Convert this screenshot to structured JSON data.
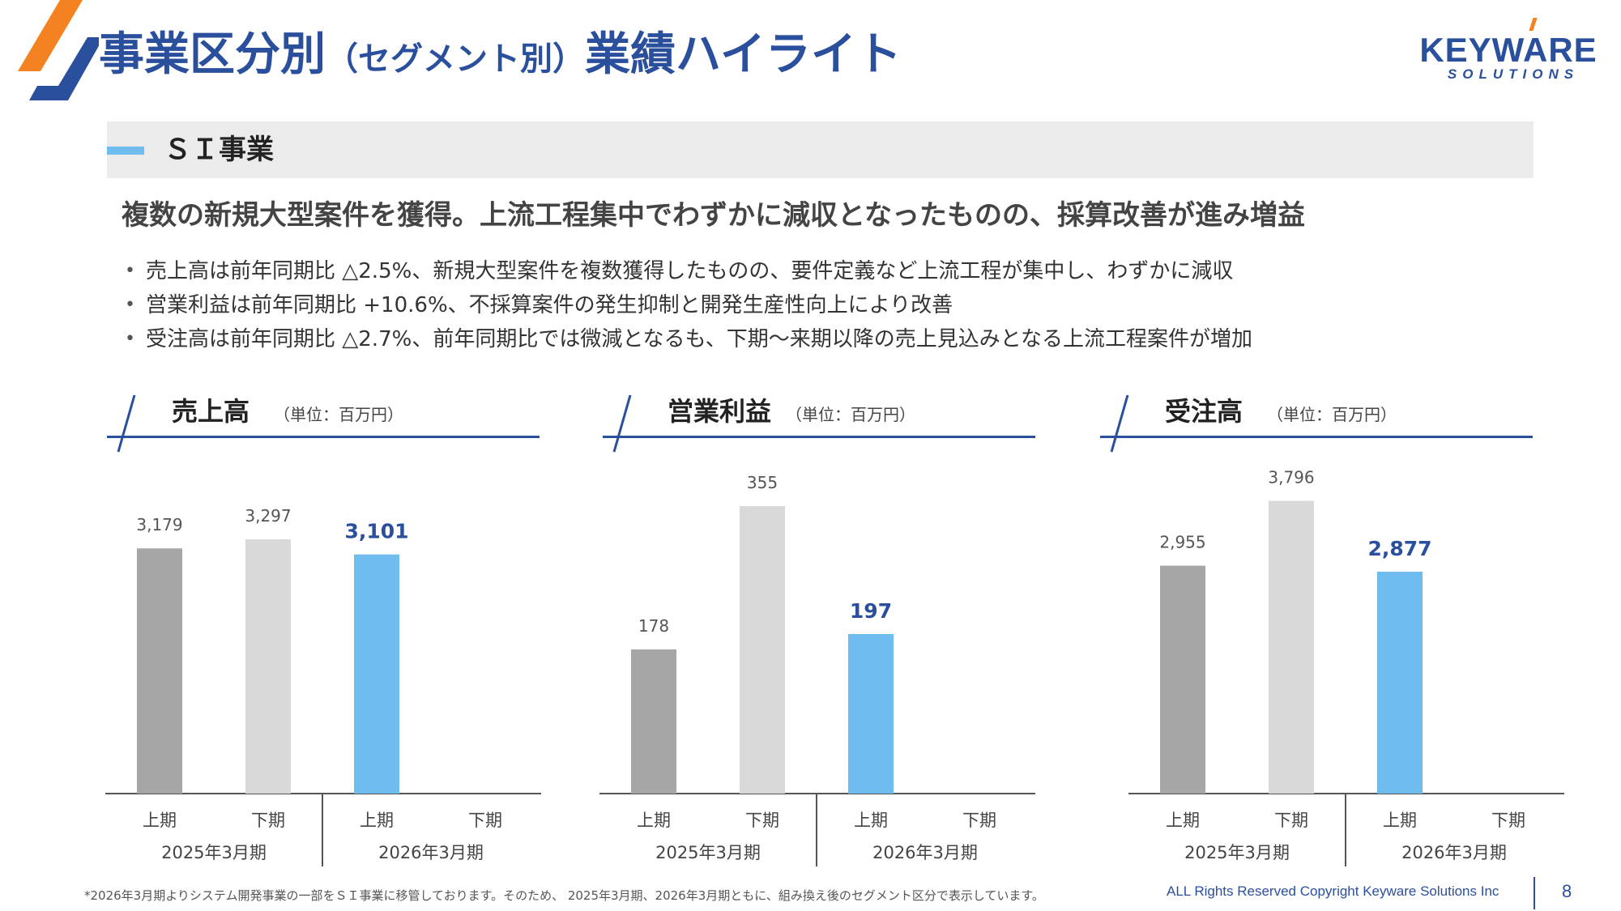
{
  "header": {
    "title_main": "事業区分別",
    "title_sub": "（セグメント別）",
    "title_tail": "業績ハイライト"
  },
  "logo": {
    "name": "KEYWARE",
    "sub": "SOLUTIONS"
  },
  "section": {
    "title": "ＳＩ事業"
  },
  "headline": "複数の新規大型案件を獲得。上流工程集中でわずかに減収となったものの、採算改善が進み増益",
  "bullets": [
    "売上高は前年同期比 △2.5%、新規大型案件を複数獲得したものの、要件定義など上流工程が集中し、わずかに減収",
    "営業利益は前年同期比 +10.6%、不採算案件の発生抑制と開発生産性向上により改善",
    "受注高は前年同期比 △2.7%、前年同期比では微減となるも、下期〜来期以降の売上見込みとなる上流工程案件が増加"
  ],
  "colors": {
    "brand_blue": "#2a4f9c",
    "accent_orange": "#f58220",
    "bar_prev_h1": "#a6a6a6",
    "bar_prev_h2": "#d9d9d9",
    "bar_current": "#6fbcef",
    "label_current": "#2a4f9c"
  },
  "chart_data": [
    {
      "type": "bar",
      "title": "売上高",
      "unit": "（単位：百万円）",
      "categories": [
        "上期",
        "下期",
        "上期",
        "下期"
      ],
      "groups": [
        "2025年3月期",
        "2026年3月期"
      ],
      "values": [
        3179,
        3297,
        3101,
        null
      ],
      "value_labels": [
        "3,179",
        "3,297",
        "3,101",
        ""
      ],
      "ylim": [
        0,
        4200
      ]
    },
    {
      "type": "bar",
      "title": "営業利益",
      "unit": "（単位：百万円）",
      "categories": [
        "上期",
        "下期",
        "上期",
        "下期"
      ],
      "groups": [
        "2025年3月期",
        "2026年3月期"
      ],
      "values": [
        178,
        355,
        197,
        null
      ],
      "value_labels": [
        "178",
        "355",
        "197",
        ""
      ],
      "ylim": [
        0,
        400
      ]
    },
    {
      "type": "bar",
      "title": "受注高",
      "unit": "（単位：百万円）",
      "categories": [
        "上期",
        "下期",
        "上期",
        "下期"
      ],
      "groups": [
        "2025年3月期",
        "2026年3月期"
      ],
      "values": [
        2955,
        3796,
        2877,
        null
      ],
      "value_labels": [
        "2,955",
        "3,796",
        "2,877",
        ""
      ],
      "ylim": [
        0,
        4200
      ]
    }
  ],
  "footer": {
    "footnote": "*2026年3月期よりシステム開発事業の一部をＳＩ事業に移管しております。そのため、 2025年3月期、2026年3月期ともに、組み換え後のセグメント区分で表示しています。",
    "copyright": "ALL Rights Reserved Copyright Keyware Solutions Inc",
    "page_number": "8"
  }
}
